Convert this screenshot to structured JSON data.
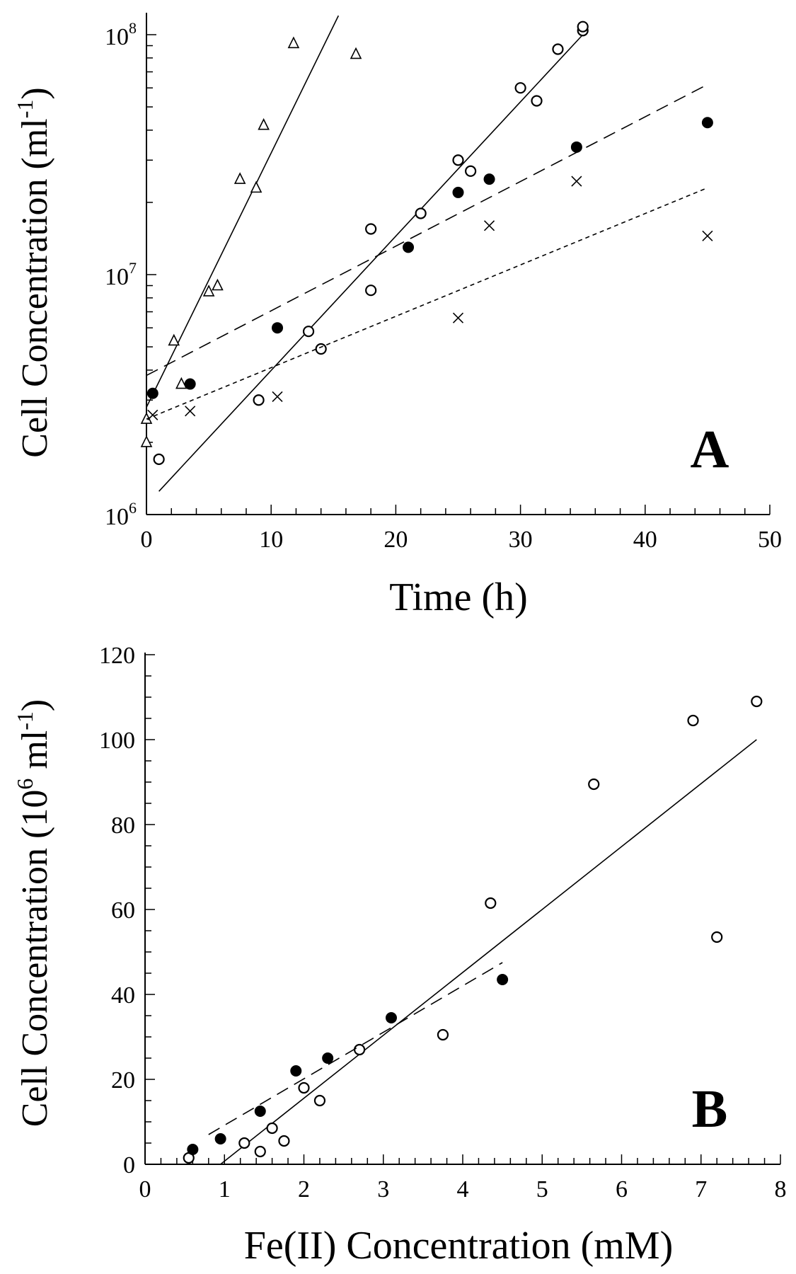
{
  "chart_data": [
    {
      "type": "scatter",
      "panel_label": "A",
      "xlabel": "Time (h)",
      "ylabel": {
        "text": "Cell Concentration (ml",
        "sup": "-1",
        "end": ")"
      },
      "yscale": "log",
      "xlim": [
        0,
        50
      ],
      "ylim": [
        1000000,
        120000000
      ],
      "xticks": [
        0,
        10,
        20,
        30,
        40,
        50
      ],
      "yticks": [
        {
          "value": 1000000,
          "base": "10",
          "exp": "6"
        },
        {
          "value": 10000000,
          "base": "10",
          "exp": "7"
        },
        {
          "value": 100000000,
          "base": "10",
          "exp": "8"
        }
      ],
      "series": [
        {
          "name": "triangles",
          "marker": "triangle",
          "points": [
            [
              0,
              2000000.0
            ],
            [
              0,
              2500000.0
            ],
            [
              2.2,
              5300000.0
            ],
            [
              2.8,
              3500000.0
            ],
            [
              5,
              8500000.0
            ],
            [
              5.7,
              9000000.0
            ],
            [
              7.5,
              25000000.0
            ],
            [
              8.8,
              23000000.0
            ],
            [
              9.4,
              42000000.0
            ],
            [
              11.8,
              92000000.0
            ],
            [
              16.8,
              83000000.0
            ]
          ],
          "fit": {
            "style": "solid",
            "from": [
              0,
              2800000.0
            ],
            "to": [
              15.4,
              120000000.0
            ]
          }
        },
        {
          "name": "open circles",
          "marker": "open-circle",
          "points": [
            [
              1,
              1700000.0
            ],
            [
              9,
              3000000.0
            ],
            [
              13,
              5800000.0
            ],
            [
              14,
              4900000.0
            ],
            [
              18,
              8600000.0
            ],
            [
              18,
              15500000.0
            ],
            [
              22,
              18000000.0
            ],
            [
              25,
              30000000.0
            ],
            [
              26,
              27000000.0
            ],
            [
              30,
              60000000.0
            ],
            [
              31.3,
              53000000.0
            ],
            [
              33,
              87000000.0
            ],
            [
              35,
              104000000.0
            ],
            [
              35,
              108000000.0
            ]
          ],
          "fit": {
            "style": "solid",
            "from": [
              1,
              1250000.0
            ],
            "to": [
              35,
              100000000.0
            ]
          }
        },
        {
          "name": "filled circles",
          "marker": "filled-circle",
          "points": [
            [
              0.5,
              3200000.0
            ],
            [
              3.5,
              3500000.0
            ],
            [
              10.5,
              6000000.0
            ],
            [
              21,
              13000000.0
            ],
            [
              25,
              22000000.0
            ],
            [
              27.5,
              25000000.0
            ],
            [
              34.5,
              34000000.0
            ],
            [
              45,
              43000000.0
            ]
          ],
          "fit": {
            "style": "dashed",
            "from": [
              0,
              3800000.0
            ],
            "to": [
              45,
              62000000.0
            ]
          }
        },
        {
          "name": "crosses",
          "marker": "cross",
          "points": [
            [
              0.5,
              2600000.0
            ],
            [
              3.5,
              2700000.0
            ],
            [
              10.5,
              3100000.0
            ],
            [
              25,
              6600000.0
            ],
            [
              27.5,
              16000000.0
            ],
            [
              34.5,
              24500000.0
            ],
            [
              45,
              14500000.0
            ]
          ],
          "fit": {
            "style": "dotted",
            "from": [
              0,
              2500000.0
            ],
            "to": [
              45,
              23000000.0
            ]
          }
        }
      ]
    },
    {
      "type": "scatter",
      "panel_label": "B",
      "xlabel": "Fe(II) Concentration (mM)",
      "ylabel": {
        "text": "Cell Concentration (10",
        "sup6": "6",
        "mid": " ml",
        "sup": "-1",
        "end": ")"
      },
      "yscale": "linear",
      "xlim": [
        0,
        8
      ],
      "ylim": [
        0,
        120
      ],
      "xticks": [
        0,
        1,
        2,
        3,
        4,
        5,
        6,
        7,
        8
      ],
      "yticks": [
        0,
        20,
        40,
        60,
        80,
        100,
        120
      ],
      "series": [
        {
          "name": "open circles",
          "marker": "open-circle",
          "points": [
            [
              0.55,
              1.5
            ],
            [
              1.25,
              5
            ],
            [
              1.45,
              3
            ],
            [
              1.6,
              8.5
            ],
            [
              1.75,
              5.5
            ],
            [
              2.0,
              18
            ],
            [
              2.2,
              15
            ],
            [
              2.7,
              27
            ],
            [
              3.75,
              30.5
            ],
            [
              4.35,
              61.5
            ],
            [
              5.65,
              89.5
            ],
            [
              6.9,
              104.5
            ],
            [
              7.2,
              53.5
            ],
            [
              7.7,
              109
            ]
          ],
          "fit": {
            "style": "solid",
            "from": [
              0.95,
              0
            ],
            "to": [
              7.7,
              100
            ]
          }
        },
        {
          "name": "filled circles",
          "marker": "filled-circle",
          "points": [
            [
              0.6,
              3.5
            ],
            [
              0.95,
              6
            ],
            [
              1.45,
              12.5
            ],
            [
              1.9,
              22
            ],
            [
              2.3,
              25
            ],
            [
              3.1,
              34.5
            ],
            [
              4.5,
              43.5
            ]
          ],
          "fit": {
            "style": "dashed",
            "from": [
              0.8,
              7
            ],
            "to": [
              4.5,
              47.5
            ]
          }
        }
      ]
    }
  ]
}
